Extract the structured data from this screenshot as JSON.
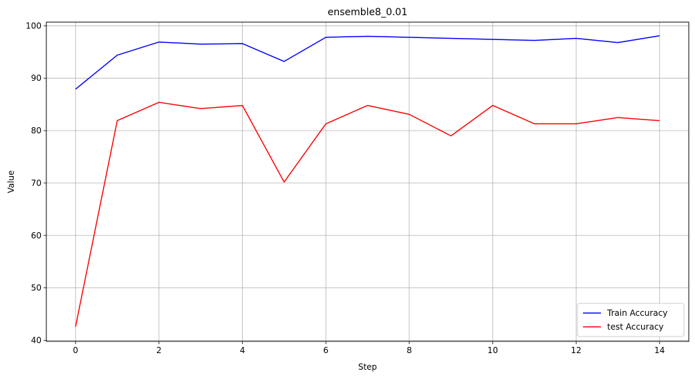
{
  "chart_data": {
    "type": "line",
    "title": "ensemble8_0.01",
    "xlabel": "Step",
    "ylabel": "Value",
    "xlim": [
      -0.7,
      14.7
    ],
    "ylim": [
      39.8,
      100.7
    ],
    "xticks": [
      0,
      2,
      4,
      6,
      8,
      10,
      12,
      14
    ],
    "yticks": [
      40,
      50,
      60,
      70,
      80,
      90,
      100
    ],
    "grid": true,
    "legend_position": "lower-right",
    "x": [
      0,
      1,
      2,
      3,
      4,
      5,
      6,
      7,
      8,
      9,
      10,
      11,
      12,
      13,
      14
    ],
    "series": [
      {
        "name": "Train Accuracy",
        "color": "#0000ff",
        "values": [
          87.9,
          94.4,
          96.9,
          96.5,
          96.6,
          93.2,
          97.8,
          98.0,
          97.8,
          97.6,
          97.4,
          97.2,
          97.6,
          96.8,
          98.1
        ]
      },
      {
        "name": "test Accuracy",
        "color": "#ff0000",
        "values": [
          42.6,
          81.9,
          85.4,
          84.2,
          84.8,
          70.2,
          81.3,
          84.8,
          83.1,
          79.0,
          84.8,
          81.3,
          81.3,
          82.5,
          81.9
        ]
      }
    ]
  }
}
